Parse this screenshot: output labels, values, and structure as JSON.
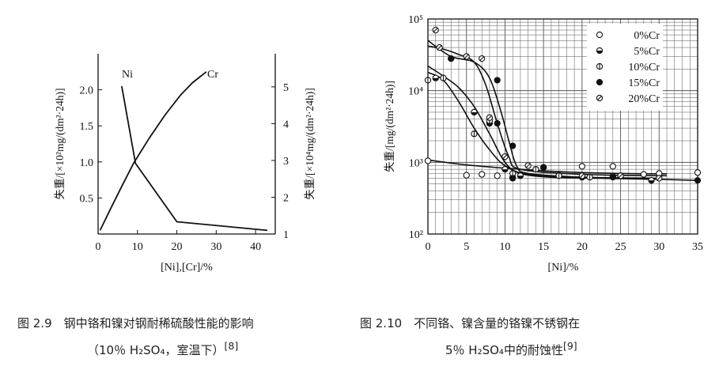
{
  "chart_data": [
    {
      "type": "line",
      "id": "fig-2-9",
      "xlabel": "[Ni],[Cr]/%",
      "ylabel_left": "失重/[×10²mg/(dm²·24h)]",
      "ylabel_right": "失重/[×10⁴mg/(dm²·24h)]",
      "xlim": [
        0,
        45
      ],
      "ylim_left": [
        0,
        2.5
      ],
      "ylim_right": [
        1,
        5.9
      ],
      "x_ticks": [
        "0",
        "10",
        "20",
        "30",
        "40"
      ],
      "y_left_ticks": [
        "0.5",
        "1.0",
        "1.5",
        "2.0"
      ],
      "y_right_ticks": [
        "1",
        "2",
        "3",
        "4",
        "5"
      ],
      "series": [
        {
          "name": "Ni",
          "axis": "left",
          "x": [
            6,
            9.5,
            20,
            43
          ],
          "y": [
            2.05,
            0.98,
            0.17,
            0.05
          ]
        },
        {
          "name": "Cr",
          "axis": "left",
          "x": [
            0.5,
            3,
            6,
            9,
            13,
            17,
            21,
            24,
            27.5
          ],
          "y": [
            0.05,
            0.33,
            0.66,
            0.98,
            1.33,
            1.65,
            1.93,
            2.1,
            2.25
          ]
        }
      ],
      "caption": "图 2.9　钢中铬和镍对钢耐稀硫酸性能的影响",
      "caption_line2": "（10％ H₂SO₄，室温下）",
      "caption_ref": "[8]"
    },
    {
      "type": "scatter",
      "id": "fig-2-10",
      "yscale": "log",
      "xlabel": "[Ni]/%",
      "ylabel": "失重/[mg/(dm²·24h)]",
      "xlim": [
        0,
        35
      ],
      "ylim": [
        100,
        100000
      ],
      "x_ticks": [
        "0",
        "5",
        "10",
        "15",
        "20",
        "25",
        "30",
        "35"
      ],
      "y_ticks": [
        "10²",
        "10³",
        "10⁴",
        "10⁵"
      ],
      "grid": true,
      "legend_position": "top-right",
      "series": [
        {
          "name": "0%Cr",
          "marker": "open",
          "points": [
            [
              0,
              1050
            ],
            [
              5,
              660
            ],
            [
              7,
              680
            ],
            [
              9,
              650
            ],
            [
              11,
              620
            ],
            [
              17,
              660
            ],
            [
              20,
              880
            ],
            [
              24,
              880
            ],
            [
              28,
              680
            ],
            [
              30,
              700
            ],
            [
              35,
              720
            ]
          ],
          "curve": [
            [
              0,
              1080
            ],
            [
              5,
              920
            ],
            [
              10,
              830
            ],
            [
              15,
              760
            ],
            [
              20,
              720
            ],
            [
              25,
              700
            ],
            [
              31,
              690
            ]
          ]
        },
        {
          "name": "5%Cr",
          "marker": "half",
          "points": [
            [
              1,
              15000
            ],
            [
              3,
              28000
            ],
            [
              6,
              5000
            ],
            [
              8,
              3500
            ],
            [
              10,
              800
            ],
            [
              12,
              650
            ],
            [
              15,
              850
            ],
            [
              20,
              620
            ],
            [
              24,
              640
            ],
            [
              29,
              560
            ]
          ],
          "curve": [
            [
              0,
              22000
            ],
            [
              2,
              16000
            ],
            [
              4,
              11000
            ],
            [
              6,
              6000
            ],
            [
              8,
              2500
            ],
            [
              10,
              1000
            ],
            [
              12,
              700
            ],
            [
              16,
              620
            ],
            [
              22,
              600
            ],
            [
              30,
              580
            ]
          ]
        },
        {
          "name": "10%Cr",
          "marker": "theta",
          "points": [
            [
              0,
              14000
            ],
            [
              2,
              15000
            ],
            [
              6,
              2500
            ],
            [
              8,
              3800
            ],
            [
              11,
              700
            ],
            [
              14,
              800
            ],
            [
              17,
              650
            ],
            [
              21,
              620
            ],
            [
              25,
              650
            ]
          ],
          "curve": [
            [
              0,
              18000
            ],
            [
              2,
              14000
            ],
            [
              4,
              7000
            ],
            [
              6,
              3000
            ],
            [
              8,
              1500
            ],
            [
              10,
              900
            ],
            [
              13,
              680
            ],
            [
              20,
              620
            ],
            [
              30,
              600
            ]
          ]
        },
        {
          "name": "15%Cr",
          "marker": "filled",
          "points": [
            [
              3,
              28000
            ],
            [
              9,
              14000
            ],
            [
              9,
              3500
            ],
            [
              11,
              1700
            ],
            [
              11,
              600
            ],
            [
              15,
              850
            ],
            [
              24,
              620
            ],
            [
              35,
              560
            ]
          ],
          "curve": [
            [
              0,
              50000
            ],
            [
              3,
              30000
            ],
            [
              6,
              25000
            ],
            [
              8,
              15000
            ],
            [
              9.5,
              5000
            ],
            [
              10.5,
              2000
            ],
            [
              11.5,
              900
            ],
            [
              13,
              700
            ],
            [
              20,
              620
            ],
            [
              30,
              580
            ],
            [
              35,
              560
            ]
          ]
        },
        {
          "name": "20%Cr",
          "marker": "slash",
          "points": [
            [
              1,
              70000
            ],
            [
              1.5,
              40000
            ],
            [
              5,
              30000
            ],
            [
              7,
              28000
            ],
            [
              8,
              4200
            ],
            [
              10,
              1200
            ],
            [
              13,
              900
            ],
            [
              20,
              650
            ],
            [
              25,
              650
            ],
            [
              30,
              600
            ]
          ],
          "curve": [
            [
              0,
              42000
            ],
            [
              2,
              38000
            ],
            [
              4,
              32000
            ],
            [
              6,
              25000
            ],
            [
              7.5,
              12000
            ],
            [
              9,
              3500
            ],
            [
              10.5,
              1200
            ],
            [
              12,
              800
            ],
            [
              20,
              680
            ],
            [
              31,
              650
            ]
          ]
        }
      ],
      "caption": "图 2.10　不同铬、镍含量的铬镍不锈钢在",
      "caption_line2": "5％ H₂SO₄中的耐蚀性",
      "caption_ref": "[9]"
    }
  ]
}
